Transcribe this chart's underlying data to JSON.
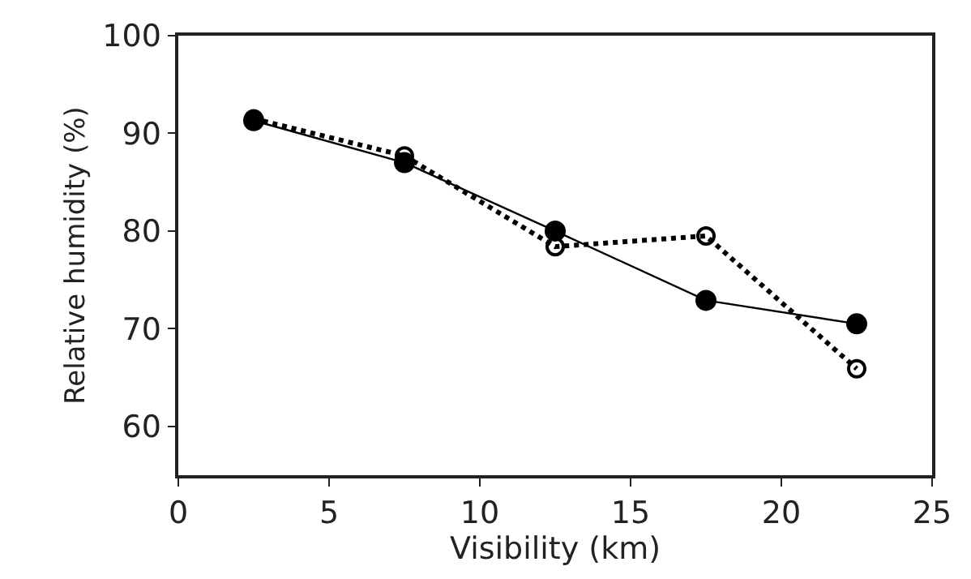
{
  "chart_data": {
    "type": "line",
    "xlabel": "Visibility (km)",
    "ylabel": "Relative humidity (%)",
    "x": [
      2.5,
      7.5,
      12.5,
      17.5,
      22.5
    ],
    "series": [
      {
        "color": "#000000",
        "values": [
          91.3,
          87.0,
          80.0,
          72.9,
          70.5
        ],
        "line_style": "solid",
        "marker": "circle"
      },
      {
        "color": "#000000",
        "values": [
          91.5,
          87.7,
          78.4,
          79.5,
          65.9
        ],
        "line_style": "dotted",
        "marker": "circle"
      }
    ],
    "xlim": [
      0,
      25
    ],
    "xticks": [
      0,
      5,
      10,
      15,
      20,
      25
    ],
    "ylim": [
      55,
      100
    ],
    "yticks": [
      60,
      70,
      80,
      90,
      100
    ]
  }
}
